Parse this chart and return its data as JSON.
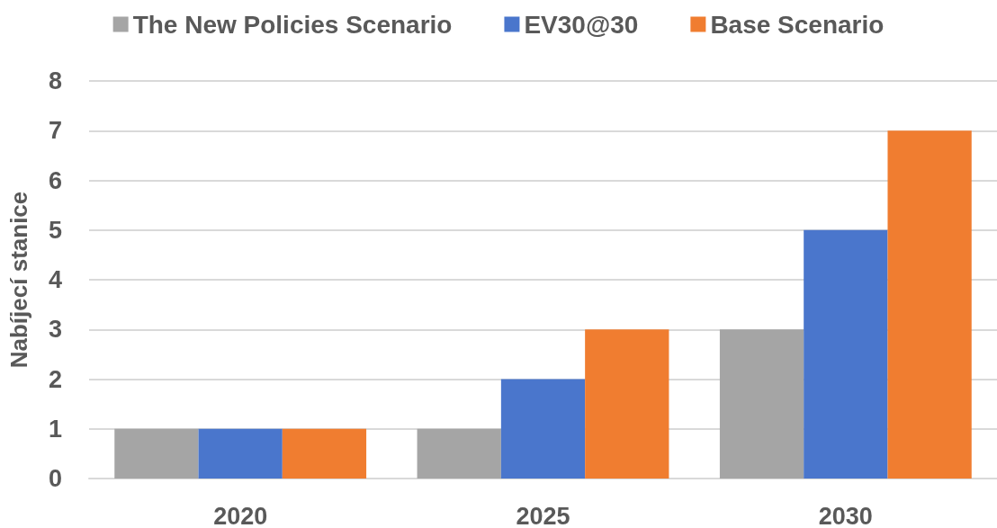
{
  "chart_data": {
    "type": "bar",
    "ylabel": "Nabíjecí stanice",
    "categories": [
      "2020",
      "2025",
      "2030"
    ],
    "series": [
      {
        "name": "The New Policies Scenario",
        "color": "#a5a5a5",
        "values": [
          1,
          1,
          3
        ]
      },
      {
        "name": "EV30@30",
        "color": "#4a76cc",
        "values": [
          1,
          2,
          5
        ]
      },
      {
        "name": "Base Scenario",
        "color": "#f07d30",
        "values": [
          1,
          3,
          7
        ]
      }
    ],
    "ylim": [
      0,
      8
    ],
    "yticks": [
      0,
      1,
      2,
      3,
      4,
      5,
      6,
      7,
      8
    ],
    "grid": "y",
    "legend": "top"
  }
}
